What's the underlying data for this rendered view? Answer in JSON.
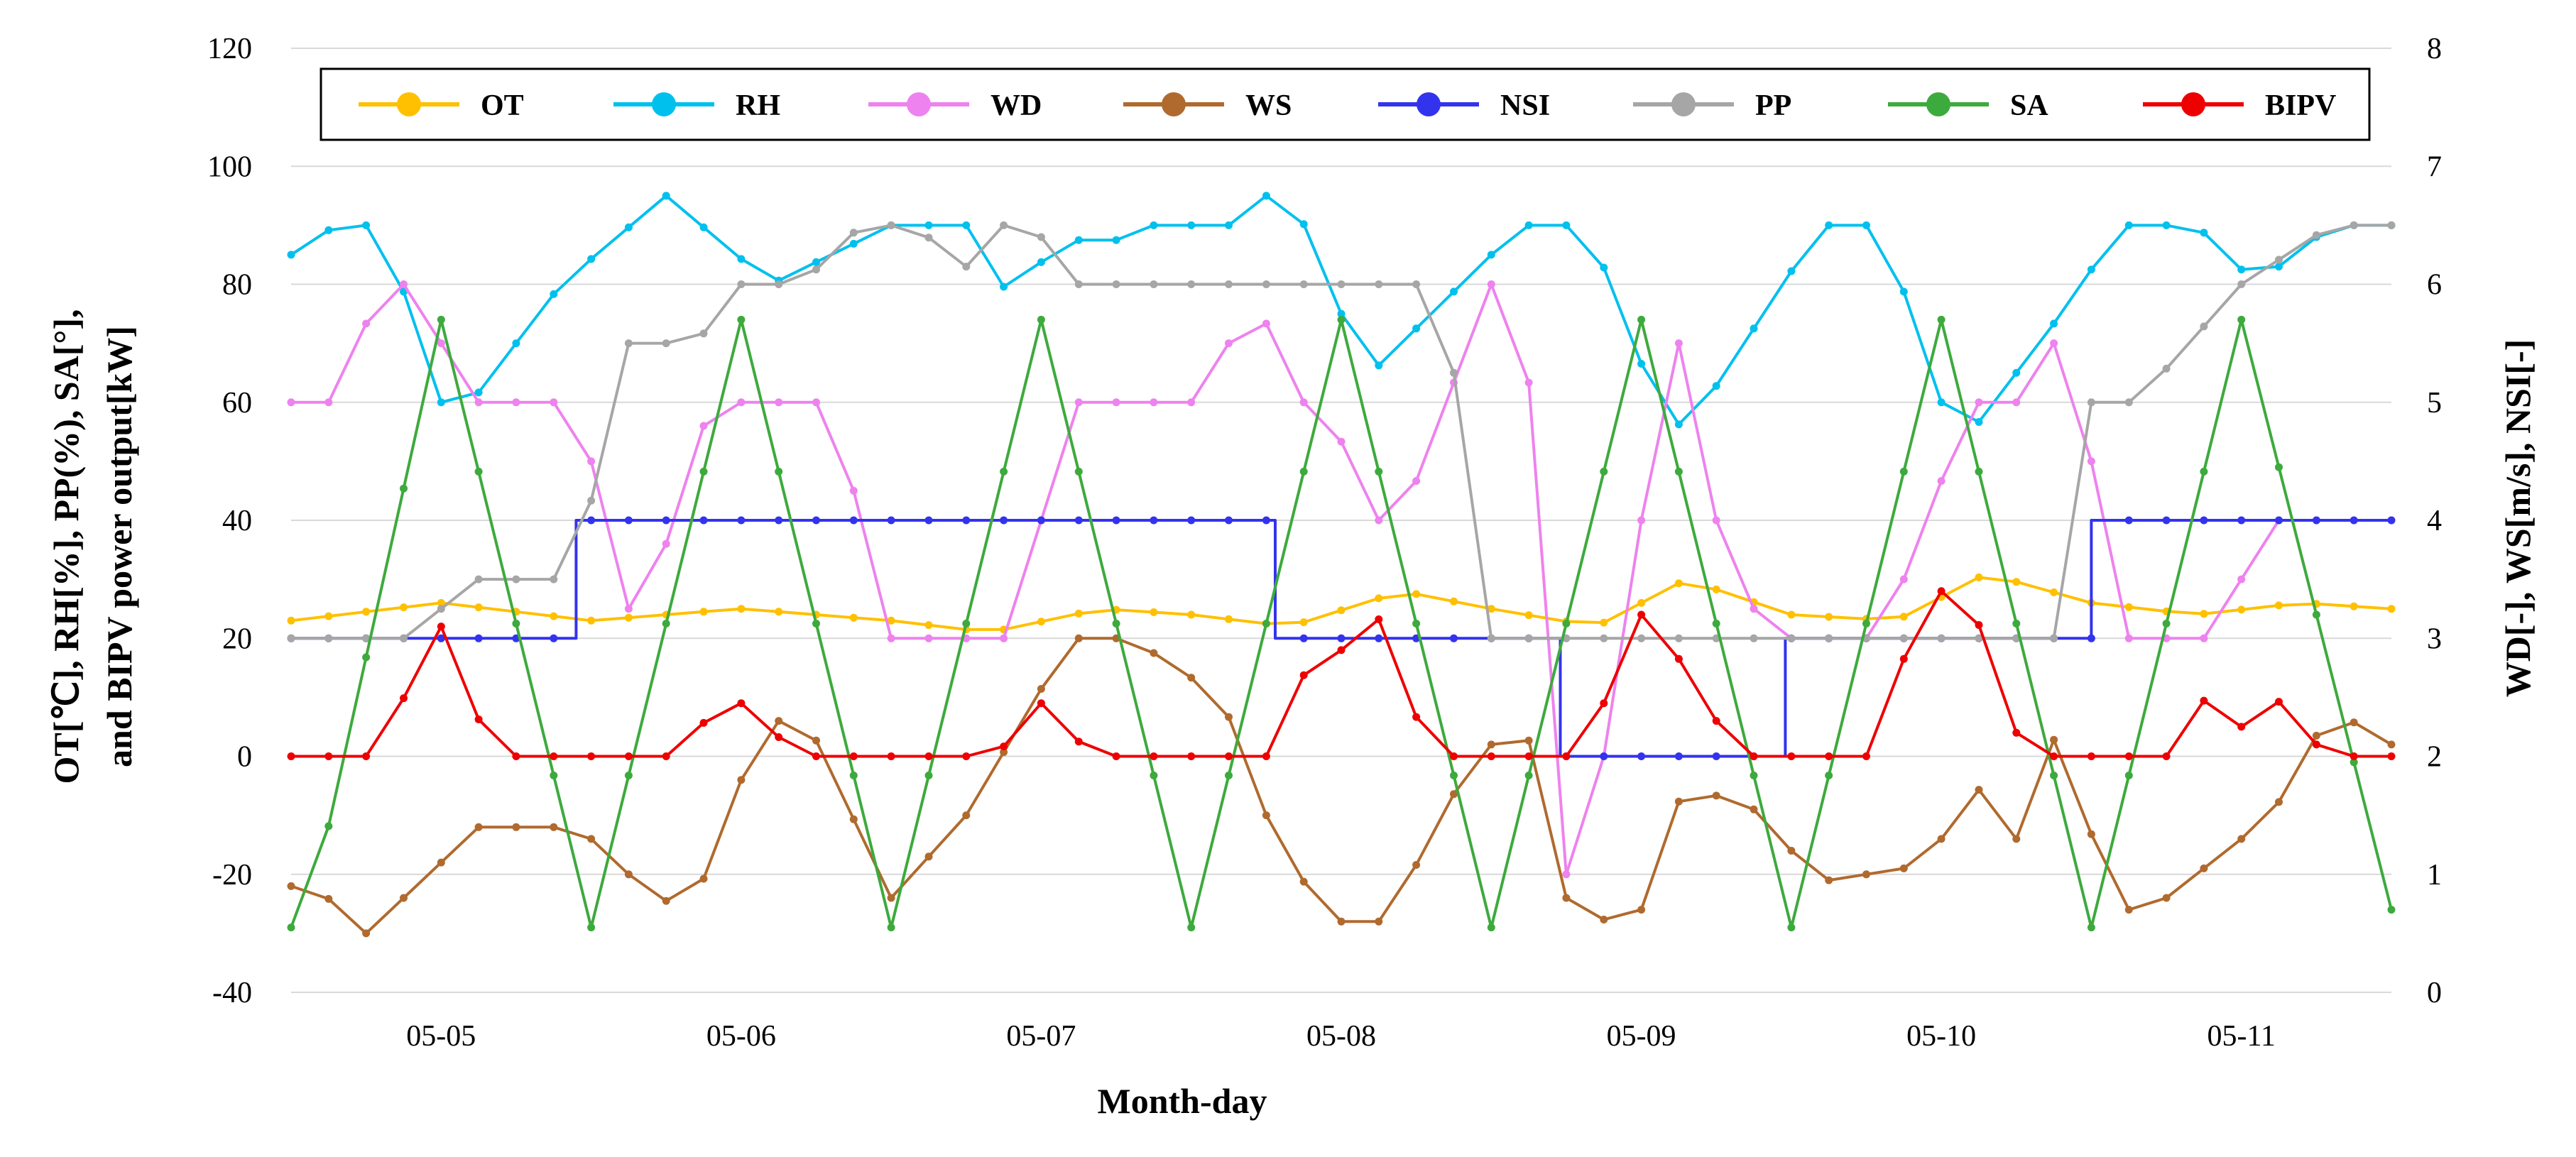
{
  "chart_data": {
    "type": "line",
    "x_unit": "days since 05-04 00:00 (3-hour steps)",
    "xlabel": "Month-day",
    "ylabel_left_line1": "OT[℃], RH[%], PP(%), SA[°],",
    "ylabel_left_line2": "and BIPV power output[kW]",
    "ylabel_right": "WD[-], WS[m/s], NSI[-]",
    "x_ticks": [
      {
        "x": 1,
        "label": "05-05"
      },
      {
        "x": 2,
        "label": "05-06"
      },
      {
        "x": 3,
        "label": "05-07"
      },
      {
        "x": 4,
        "label": "05-08"
      },
      {
        "x": 5,
        "label": "05-09"
      },
      {
        "x": 6,
        "label": "05-10"
      },
      {
        "x": 7,
        "label": "05-11"
      }
    ],
    "xlim": [
      0.5,
      7.5
    ],
    "ylim_left": [
      -40,
      120
    ],
    "yticks_left": [
      "-40",
      "-20",
      "0",
      "20",
      "40",
      "60",
      "80",
      "100",
      "120"
    ],
    "ylim_right": [
      0,
      8
    ],
    "yticks_right": [
      "0",
      "1",
      "2",
      "3",
      "4",
      "5",
      "6",
      "7",
      "8"
    ],
    "gridlines": "horizontal",
    "legend_position": "top",
    "series": [
      {
        "name": "OT",
        "axis": "left",
        "color": "#FFC000",
        "step": false,
        "points": [
          [
            0.5,
            23
          ],
          [
            1.0,
            26
          ],
          [
            1.5,
            23
          ],
          [
            2.0,
            25
          ],
          [
            2.5,
            23
          ],
          [
            2.83,
            21
          ],
          [
            3.2,
            25
          ],
          [
            3.5,
            24
          ],
          [
            3.83,
            22
          ],
          [
            4.2,
            28
          ],
          [
            4.5,
            25
          ],
          [
            4.85,
            22
          ],
          [
            5.15,
            30
          ],
          [
            5.5,
            24
          ],
          [
            5.85,
            23
          ],
          [
            6.15,
            31
          ],
          [
            6.5,
            26
          ],
          [
            6.85,
            24
          ],
          [
            7.2,
            26
          ],
          [
            7.5,
            25
          ]
        ]
      },
      {
        "name": "RH",
        "axis": "left",
        "color": "#00C0EE",
        "step": false,
        "points": [
          [
            0.5,
            85
          ],
          [
            0.65,
            90
          ],
          [
            0.8,
            90
          ],
          [
            1.0,
            60
          ],
          [
            1.1,
            60
          ],
          [
            1.4,
            80
          ],
          [
            1.75,
            95
          ],
          [
            2.1,
            80
          ],
          [
            2.3,
            85
          ],
          [
            2.5,
            90
          ],
          [
            2.75,
            90
          ],
          [
            2.93,
            75
          ],
          [
            3.05,
            90
          ],
          [
            3.2,
            85
          ],
          [
            3.3,
            90
          ],
          [
            3.65,
            90
          ],
          [
            3.75,
            95
          ],
          [
            3.88,
            90
          ],
          [
            4.0,
            75
          ],
          [
            4.1,
            65
          ],
          [
            4.6,
            90
          ],
          [
            4.82,
            90
          ],
          [
            5.05,
            60
          ],
          [
            5.15,
            55
          ],
          [
            5.6,
            90
          ],
          [
            5.8,
            90
          ],
          [
            6.0,
            60
          ],
          [
            6.1,
            55
          ],
          [
            6.4,
            75
          ],
          [
            6.6,
            90
          ],
          [
            6.85,
            90
          ],
          [
            7.05,
            80
          ],
          [
            7.3,
            90
          ],
          [
            7.5,
            90
          ]
        ]
      },
      {
        "name": "WD",
        "axis": "right",
        "color": "#EE82EE",
        "step": false,
        "points": [
          [
            0.5,
            5.0
          ],
          [
            0.65,
            5.0
          ],
          [
            0.8,
            6.0
          ],
          [
            0.95,
            6.0
          ],
          [
            1.05,
            5.0
          ],
          [
            1.45,
            5.0
          ],
          [
            1.65,
            3.0
          ],
          [
            1.9,
            5.0
          ],
          [
            2.3,
            5.0
          ],
          [
            2.5,
            3.0
          ],
          [
            2.85,
            3.0
          ],
          [
            2.95,
            3.0
          ],
          [
            3.05,
            5.0
          ],
          [
            3.55,
            5.0
          ],
          [
            3.7,
            6.0
          ],
          [
            3.85,
            5.0
          ],
          [
            3.95,
            5.0
          ],
          [
            4.1,
            4.0
          ],
          [
            4.2,
            4.0
          ],
          [
            4.35,
            5.0
          ],
          [
            4.5,
            6.0
          ],
          [
            4.6,
            6.0
          ],
          [
            4.75,
            1.0
          ],
          [
            4.8,
            3.0
          ],
          [
            4.95,
            1.0
          ],
          [
            5.05,
            7.0
          ],
          [
            5.2,
            4.0
          ],
          [
            5.3,
            4.0
          ],
          [
            5.4,
            3.0
          ],
          [
            5.6,
            3.0
          ],
          [
            5.8,
            3.0
          ],
          [
            6.1,
            5.0
          ],
          [
            6.3,
            5.0
          ],
          [
            6.45,
            6.0
          ],
          [
            6.55,
            3.0
          ],
          [
            6.9,
            3.0
          ],
          [
            7.1,
            4.0
          ],
          [
            7.5,
            4.0
          ]
        ]
      },
      {
        "name": "WS",
        "axis": "right",
        "color": "#B06A2E",
        "step": false,
        "points": [
          [
            0.5,
            0.9
          ],
          [
            0.6,
            0.85
          ],
          [
            0.75,
            0.5
          ],
          [
            1.0,
            1.1
          ],
          [
            1.1,
            1.4
          ],
          [
            1.25,
            1.4
          ],
          [
            1.45,
            1.4
          ],
          [
            1.6,
            1.1
          ],
          [
            1.7,
            0.7
          ],
          [
            1.9,
            1.0
          ],
          [
            2.05,
            2.2
          ],
          [
            2.2,
            2.4
          ],
          [
            2.5,
            0.8
          ],
          [
            2.75,
            1.5
          ],
          [
            3.1,
            3.0
          ],
          [
            3.3,
            3.0
          ],
          [
            3.6,
            2.5
          ],
          [
            3.75,
            1.5
          ],
          [
            3.95,
            0.6
          ],
          [
            4.15,
            0.6
          ],
          [
            4.4,
            1.8
          ],
          [
            4.6,
            2.4
          ],
          [
            4.75,
            0.8
          ],
          [
            4.85,
            0.6
          ],
          [
            5.0,
            0.7
          ],
          [
            5.15,
            1.8
          ],
          [
            5.3,
            1.6
          ],
          [
            5.45,
            1.5
          ],
          [
            5.55,
            0.9
          ],
          [
            5.7,
            1.0
          ],
          [
            5.85,
            1.0
          ],
          [
            6.0,
            1.3
          ],
          [
            6.1,
            1.8
          ],
          [
            6.25,
            1.3
          ],
          [
            6.35,
            2.3
          ],
          [
            6.6,
            0.7
          ],
          [
            6.7,
            0.7
          ],
          [
            6.95,
            1.2
          ],
          [
            7.1,
            1.5
          ],
          [
            7.3,
            2.4
          ],
          [
            7.5,
            2.1
          ]
        ]
      },
      {
        "name": "NSI",
        "axis": "right",
        "color": "#3333EE",
        "step": true,
        "points": [
          [
            0.5,
            3.0
          ],
          [
            1.45,
            3.0
          ],
          [
            1.45,
            4.0
          ],
          [
            3.78,
            4.0
          ],
          [
            3.78,
            3.0
          ],
          [
            4.73,
            3.0
          ],
          [
            4.73,
            2.0
          ],
          [
            5.48,
            2.0
          ],
          [
            5.48,
            3.0
          ],
          [
            6.5,
            3.0
          ],
          [
            6.5,
            4.0
          ],
          [
            7.5,
            4.0
          ]
        ]
      },
      {
        "name": "PP",
        "axis": "left",
        "color": "#A6A6A6",
        "step": false,
        "points": [
          [
            0.5,
            20
          ],
          [
            0.9,
            20
          ],
          [
            1.1,
            30
          ],
          [
            1.45,
            30
          ],
          [
            1.6,
            70
          ],
          [
            1.85,
            70
          ],
          [
            2.0,
            80
          ],
          [
            2.2,
            80
          ],
          [
            2.4,
            90
          ],
          [
            2.6,
            90
          ],
          [
            2.72,
            80
          ],
          [
            2.82,
            90
          ],
          [
            2.98,
            90
          ],
          [
            3.08,
            80
          ],
          [
            4.35,
            80
          ],
          [
            4.45,
            20
          ],
          [
            6.4,
            20
          ],
          [
            6.5,
            60
          ],
          [
            6.65,
            60
          ],
          [
            7.0,
            80
          ],
          [
            7.3,
            90
          ],
          [
            7.5,
            90
          ]
        ]
      },
      {
        "name": "SA",
        "axis": "left",
        "color": "#3DAA3D",
        "step": false,
        "points": [
          [
            0.5,
            -29
          ],
          [
            0.55,
            -29
          ],
          [
            1.0,
            74
          ],
          [
            1.5,
            -29
          ],
          [
            2.0,
            74
          ],
          [
            2.5,
            -29
          ],
          [
            3.0,
            74
          ],
          [
            3.5,
            -29
          ],
          [
            4.0,
            74
          ],
          [
            4.5,
            -29
          ],
          [
            5.0,
            74
          ],
          [
            5.5,
            -29
          ],
          [
            6.0,
            74
          ],
          [
            6.5,
            -29
          ],
          [
            7.0,
            74
          ],
          [
            7.5,
            -26
          ]
        ]
      },
      {
        "name": "BIPV",
        "axis": "left",
        "color": "#EE0000",
        "step": false,
        "points": [
          [
            0.5,
            0
          ],
          [
            0.75,
            0
          ],
          [
            0.85,
            7
          ],
          [
            0.92,
            15
          ],
          [
            1.0,
            22
          ],
          [
            1.08,
            10
          ],
          [
            1.2,
            0
          ],
          [
            1.75,
            0
          ],
          [
            1.85,
            5
          ],
          [
            2.0,
            9
          ],
          [
            2.05,
            4
          ],
          [
            2.15,
            3
          ],
          [
            2.25,
            0
          ],
          [
            2.75,
            0
          ],
          [
            2.9,
            2
          ],
          [
            3.0,
            9
          ],
          [
            3.05,
            7
          ],
          [
            3.1,
            2
          ],
          [
            3.2,
            4
          ],
          [
            3.25,
            0
          ],
          [
            3.75,
            0
          ],
          [
            3.85,
            10
          ],
          [
            3.95,
            25
          ],
          [
            4.0,
            18
          ],
          [
            4.08,
            29
          ],
          [
            4.15,
            20
          ],
          [
            4.3,
            0
          ],
          [
            4.8,
            0
          ],
          [
            4.9,
            12
          ],
          [
            5.0,
            24
          ],
          [
            5.05,
            33
          ],
          [
            5.1,
            18
          ],
          [
            5.2,
            12
          ],
          [
            5.3,
            0
          ],
          [
            5.75,
            0
          ],
          [
            5.85,
            12
          ],
          [
            5.95,
            30
          ],
          [
            6.0,
            28
          ],
          [
            6.05,
            22
          ],
          [
            6.1,
            27
          ],
          [
            6.2,
            8
          ],
          [
            6.3,
            0
          ],
          [
            6.75,
            0
          ],
          [
            6.85,
            8
          ],
          [
            6.92,
            12
          ],
          [
            7.0,
            5
          ],
          [
            7.1,
            11
          ],
          [
            7.2,
            4
          ],
          [
            7.3,
            0
          ],
          [
            7.5,
            0
          ]
        ]
      }
    ]
  }
}
